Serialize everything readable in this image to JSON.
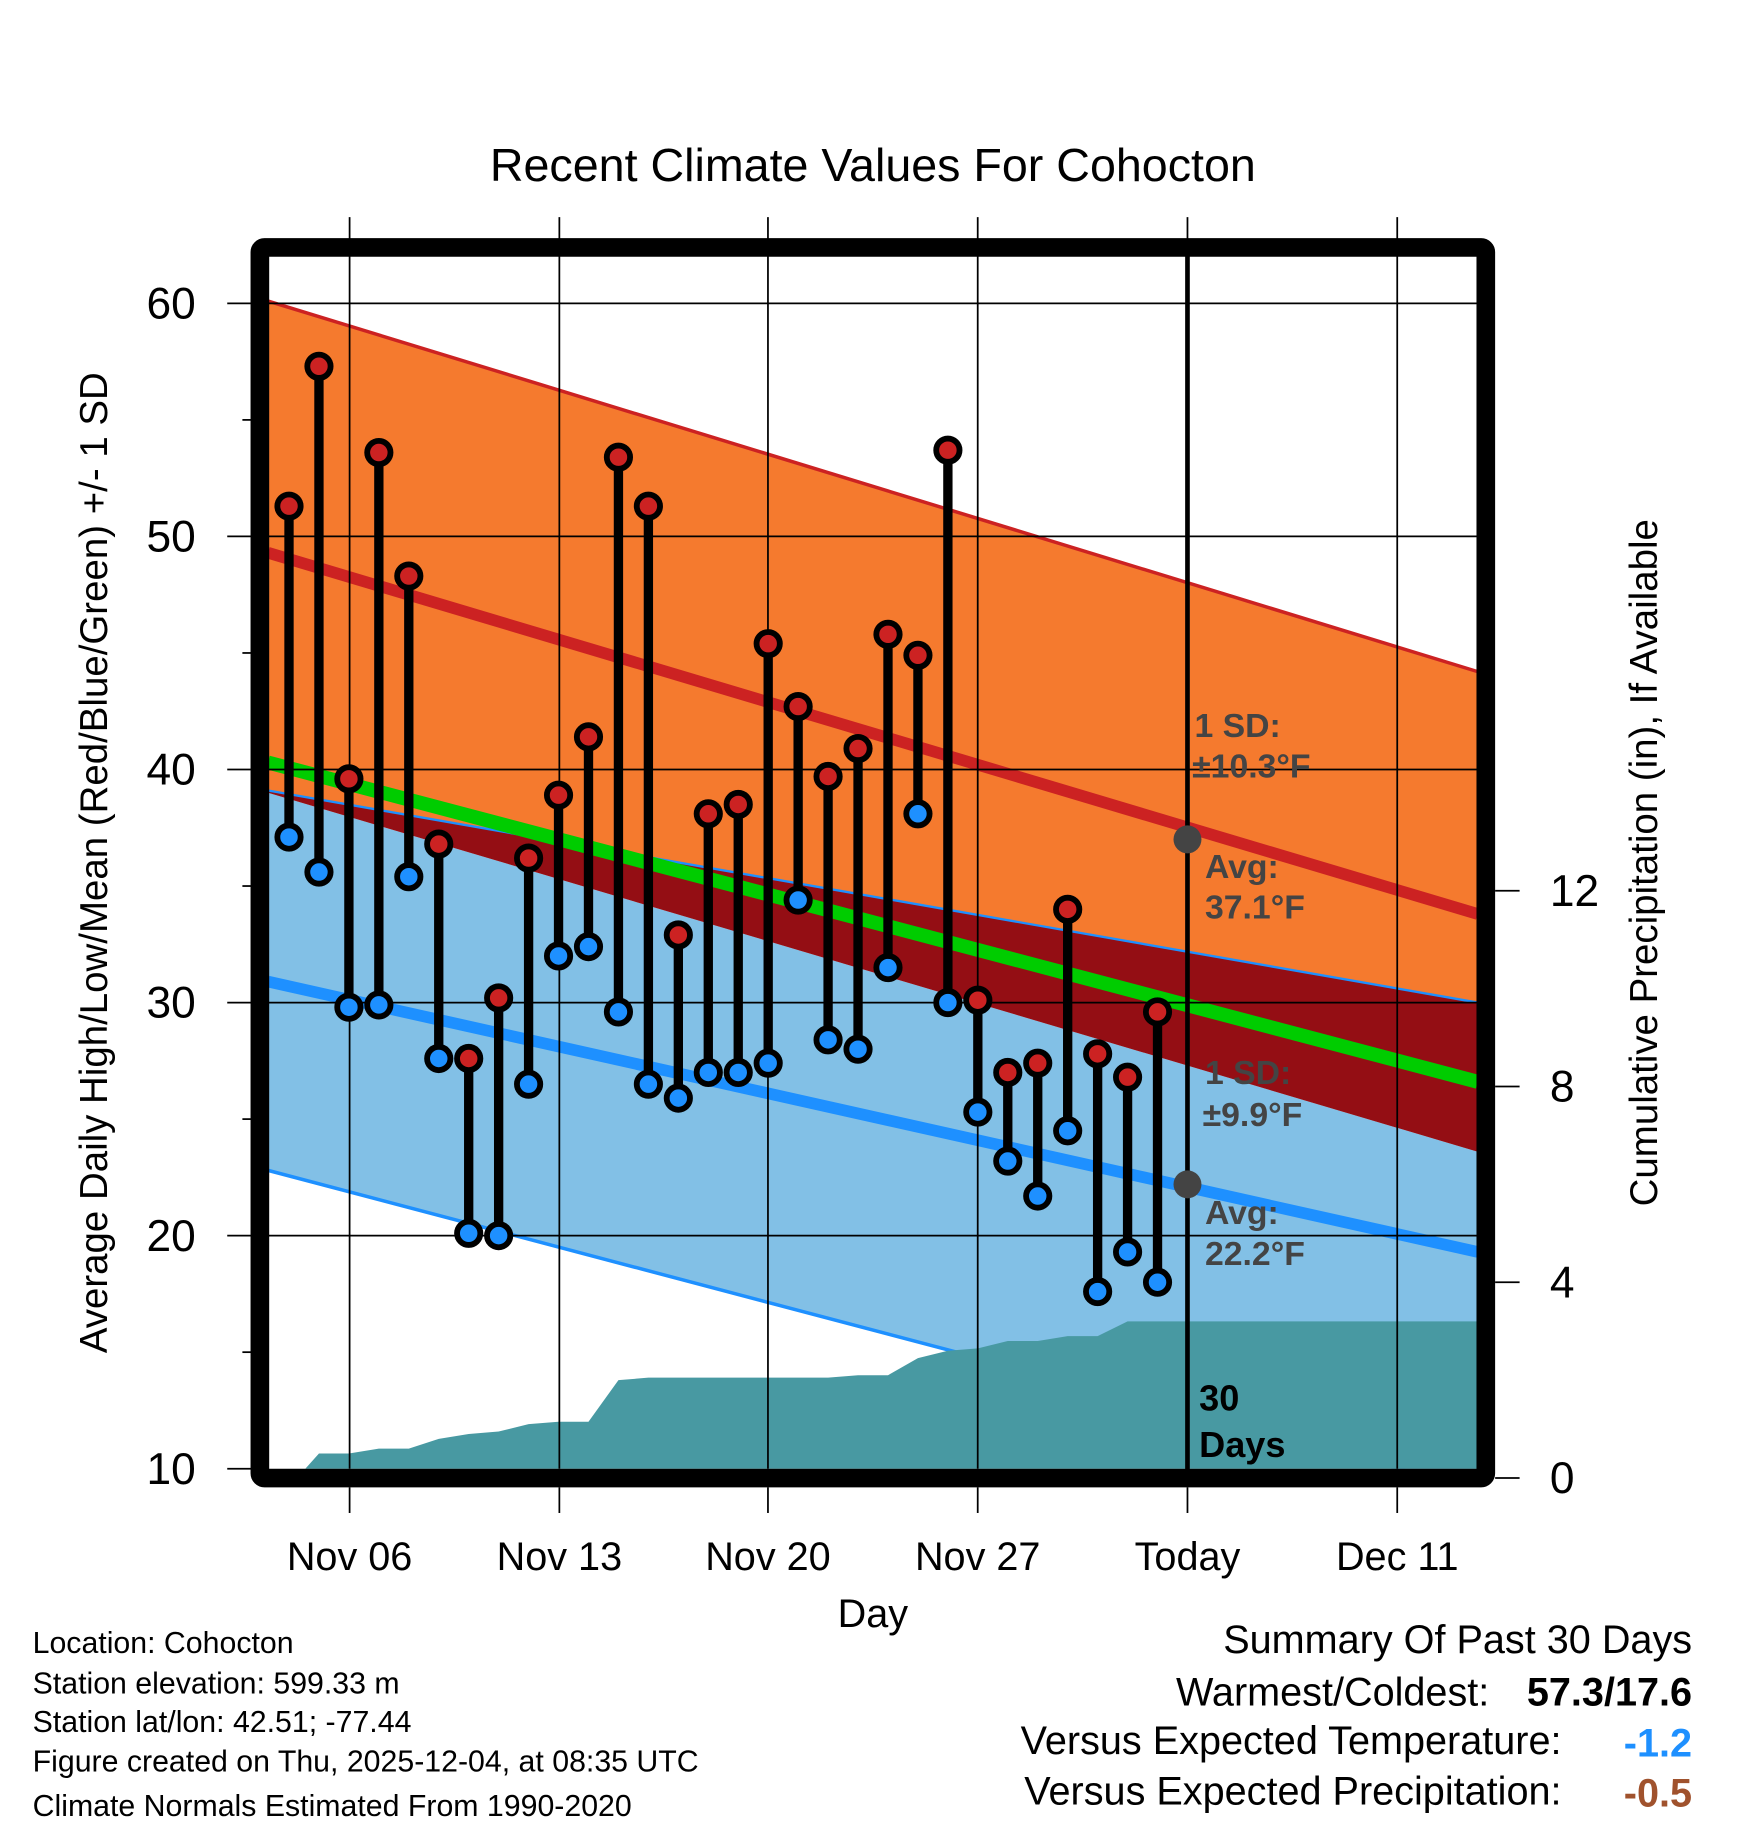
{
  "chart_data": {
    "type": "bar",
    "title": "Recent Climate Values For Cohocton",
    "xlabel": "Day",
    "ylabel": "Average Daily High/Low/Mean (Red/Blue/Green) +/- 1 SD",
    "y2label": "Cumulative Precipitation (in), If Available",
    "ylim": [
      10,
      60
    ],
    "y2lim": [
      0,
      15
    ],
    "yticks": [
      "60",
      "50",
      "40",
      "30",
      "20",
      "10"
    ],
    "y2ticks": [
      "12",
      "8",
      "4",
      "0"
    ],
    "xticks": [
      "Nov 06",
      "Nov 13",
      "Nov 20",
      "Nov 27",
      "Today",
      "Dec 11"
    ],
    "days": [
      "Nov 04",
      "Nov 05",
      "Nov 06",
      "Nov 07",
      "Nov 08",
      "Nov 09",
      "Nov 10",
      "Nov 11",
      "Nov 12",
      "Nov 13",
      "Nov 14",
      "Nov 15",
      "Nov 16",
      "Nov 17",
      "Nov 18",
      "Nov 19",
      "Nov 20",
      "Nov 21",
      "Nov 22",
      "Nov 23",
      "Nov 24",
      "Nov 25",
      "Nov 26",
      "Nov 27",
      "Nov 28",
      "Nov 29",
      "Nov 30",
      "Dec 01",
      "Dec 02",
      "Dec 03"
    ],
    "highs": [
      51.3,
      57.3,
      39.6,
      53.6,
      48.3,
      36.8,
      27.6,
      30.2,
      36.2,
      38.9,
      41.4,
      53.4,
      51.3,
      32.9,
      38.1,
      38.5,
      45.4,
      42.7,
      39.7,
      40.9,
      45.8,
      44.9,
      53.7,
      30.1,
      27.0,
      27.4,
      34.0,
      27.8,
      26.8,
      29.6
    ],
    "lows": [
      37.1,
      35.6,
      29.8,
      29.9,
      35.4,
      27.6,
      20.1,
      20.0,
      26.5,
      32.0,
      32.4,
      29.6,
      26.5,
      25.9,
      27.0,
      27.0,
      27.4,
      34.4,
      28.4,
      28.0,
      31.5,
      38.1,
      30.0,
      25.3,
      23.2,
      21.7,
      24.5,
      17.6,
      19.3,
      18.0
    ],
    "cumulative_precip_in": [
      0,
      0.5,
      0.5,
      0.6,
      0.6,
      0.8,
      0.9,
      0.95,
      1.1,
      1.15,
      1.15,
      2.0,
      2.05,
      2.05,
      2.05,
      2.05,
      2.05,
      2.05,
      2.05,
      2.1,
      2.1,
      2.45,
      2.6,
      2.65,
      2.8,
      2.8,
      2.9,
      2.9,
      3.2,
      3.2
    ],
    "normals": {
      "high_avg": [
        49.3,
        33.8
      ],
      "high_plus_sd": [
        60.1,
        44.2
      ],
      "high_minus_sd": [
        39.1,
        30.0
      ],
      "mean": [
        40.3,
        26.6
      ],
      "low_avg": [
        30.9,
        19.3
      ],
      "low_plus_sd": [
        39.0,
        23.6
      ],
      "low_minus_sd": [
        22.8,
        9.1
      ]
    },
    "annotations": {
      "high_sd_label": "1 SD:",
      "high_sd_value": "±10.3°F",
      "high_avg_label": "Avg:",
      "high_avg_value": "37.1°F",
      "low_sd_label": "1 SD:",
      "low_sd_value": "±9.9°F",
      "low_avg_label": "Avg:",
      "low_avg_value": "22.2°F",
      "days_count": "30",
      "days_label": "Days"
    },
    "today_high_avg": 37.1,
    "today_low_avg": 22.2
  },
  "footer": {
    "location": "Location: Cohocton",
    "elevation": "Station elevation: 599.33 m",
    "latlon": "Station lat/lon: 42.51; -77.44",
    "created": "Figure created on Thu, 2025-12-04, at 08:35 UTC",
    "normals": "Climate Normals Estimated From 1990-2020"
  },
  "summary": {
    "title": "Summary Of Past 30 Days",
    "warmest_label": "Warmest/Coldest:",
    "warmest_value": "57.3/17.6",
    "temp_label": "Versus Expected Temperature:",
    "temp_value": "-1.2",
    "precip_label": "Versus Expected Precipitation:",
    "precip_value": "-0.5"
  },
  "colors": {
    "high_band": "#f57a2e",
    "high_line": "#cc2222",
    "mean": "#00cc00",
    "overlap": "#940e14",
    "low_band": "#82c0e6",
    "low_line": "#1e90ff",
    "precip": "#4899a2",
    "temp_value": "#1e90ff",
    "precip_value": "#a0522d"
  }
}
